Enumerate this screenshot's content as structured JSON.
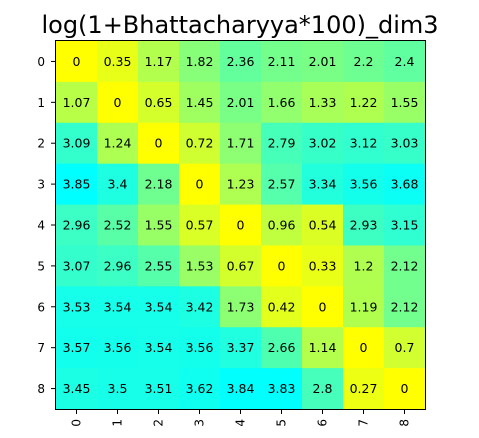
{
  "chart_data": {
    "type": "heatmap",
    "title": "log(1+Bhattacharyya*100)_dim3",
    "x_labels": [
      "0",
      "1",
      "2",
      "3",
      "4",
      "5",
      "6",
      "7",
      "8"
    ],
    "y_labels": [
      "0",
      "1",
      "2",
      "3",
      "4",
      "5",
      "6",
      "7",
      "8"
    ],
    "values": [
      [
        0.0,
        0.35,
        1.17,
        1.82,
        2.36,
        2.11,
        2.01,
        2.2,
        2.4
      ],
      [
        1.07,
        0.0,
        0.65,
        1.45,
        2.01,
        1.66,
        1.33,
        1.22,
        1.55
      ],
      [
        3.09,
        1.24,
        0.0,
        0.72,
        1.71,
        2.79,
        3.02,
        3.12,
        3.03
      ],
      [
        3.85,
        3.4,
        2.18,
        0.0,
        1.23,
        2.57,
        3.34,
        3.56,
        3.68
      ],
      [
        2.96,
        2.52,
        1.55,
        0.57,
        0.0,
        0.96,
        0.54,
        2.93,
        3.15
      ],
      [
        3.07,
        2.96,
        2.55,
        1.53,
        0.67,
        0.0,
        0.33,
        1.2,
        2.12
      ],
      [
        3.53,
        3.54,
        3.54,
        3.42,
        1.73,
        0.42,
        0.0,
        1.19,
        2.12
      ],
      [
        3.57,
        3.56,
        3.54,
        3.56,
        3.37,
        2.66,
        1.14,
        0.0,
        0.7
      ],
      [
        3.45,
        3.5,
        3.51,
        3.62,
        3.84,
        3.83,
        2.8,
        0.27,
        0.0
      ]
    ],
    "colormap": {
      "low": "#ffff00",
      "mid": "#80ff80",
      "high": "#00ffff"
    }
  }
}
